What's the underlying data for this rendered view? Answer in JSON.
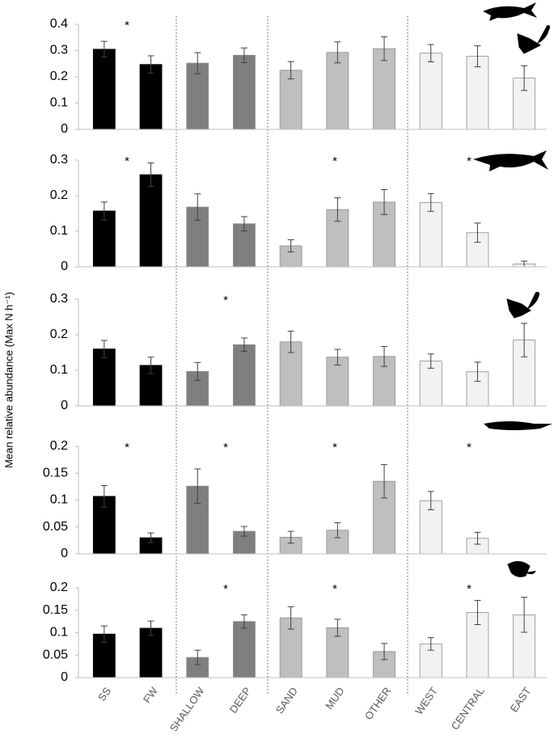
{
  "y_label": "Mean relative abundance (Max N h⁻¹)",
  "categories": [
    "SS",
    "FW",
    "SHALLOW",
    "DEEP",
    "SAND",
    "MUD",
    "OTHER",
    "WEST",
    "CENTRAL",
    "EAST"
  ],
  "colors": [
    "#000000",
    "#000000",
    "#7f7f7f",
    "#7f7f7f",
    "#bfbfbf",
    "#bfbfbf",
    "#bfbfbf",
    "#f2f2f2",
    "#f2f2f2",
    "#f2f2f2"
  ],
  "chart_data": [
    {
      "type": "bar",
      "values": [
        0.305,
        0.247,
        0.252,
        0.282,
        0.225,
        0.293,
        0.307,
        0.29,
        0.278,
        0.195
      ],
      "errors": [
        0.03,
        0.033,
        0.04,
        0.028,
        0.033,
        0.04,
        0.045,
        0.033,
        0.04,
        0.047
      ],
      "ylim": [
        0,
        0.4
      ],
      "yticks": [
        0,
        0.1,
        0.2,
        0.3,
        0.4
      ],
      "annotations": [
        "*",
        null,
        null,
        null
      ]
    },
    {
      "type": "bar",
      "values": [
        0.157,
        0.259,
        0.168,
        0.121,
        0.059,
        0.161,
        0.182,
        0.181,
        0.096,
        0.008
      ],
      "errors": [
        0.025,
        0.033,
        0.037,
        0.02,
        0.017,
        0.033,
        0.035,
        0.025,
        0.027,
        0.008
      ],
      "ylim": [
        0,
        0.3
      ],
      "yticks": [
        0,
        0.1,
        0.2,
        0.3
      ],
      "annotations": [
        "*",
        null,
        "*",
        "*"
      ]
    },
    {
      "type": "bar",
      "values": [
        0.16,
        0.114,
        0.097,
        0.172,
        0.18,
        0.137,
        0.139,
        0.126,
        0.096,
        0.185
      ],
      "errors": [
        0.024,
        0.023,
        0.025,
        0.019,
        0.03,
        0.022,
        0.028,
        0.02,
        0.027,
        0.047
      ],
      "ylim": [
        0,
        0.3
      ],
      "yticks": [
        0,
        0.1,
        0.2,
        0.3
      ],
      "annotations": [
        null,
        "*",
        null,
        null
      ]
    },
    {
      "type": "bar",
      "values": [
        0.107,
        0.03,
        0.126,
        0.042,
        0.031,
        0.044,
        0.135,
        0.099,
        0.029,
        null
      ],
      "errors": [
        0.02,
        0.009,
        0.032,
        0.009,
        0.011,
        0.014,
        0.031,
        0.017,
        0.011,
        null
      ],
      "ylim": [
        0,
        0.2
      ],
      "yticks": [
        0,
        0.05,
        0.1,
        0.15,
        0.2
      ],
      "annotations": [
        "*",
        "*",
        "*",
        "*"
      ]
    },
    {
      "type": "bar",
      "values": [
        0.097,
        0.11,
        0.045,
        0.125,
        0.133,
        0.111,
        0.058,
        0.075,
        0.145,
        0.14
      ],
      "errors": [
        0.018,
        0.016,
        0.016,
        0.015,
        0.025,
        0.019,
        0.018,
        0.014,
        0.027,
        0.039
      ],
      "ylim": [
        0,
        0.2
      ],
      "yticks": [
        0,
        0.05,
        0.1,
        0.15,
        0.2
      ],
      "annotations": [
        null,
        "*",
        "*",
        "*"
      ]
    }
  ]
}
